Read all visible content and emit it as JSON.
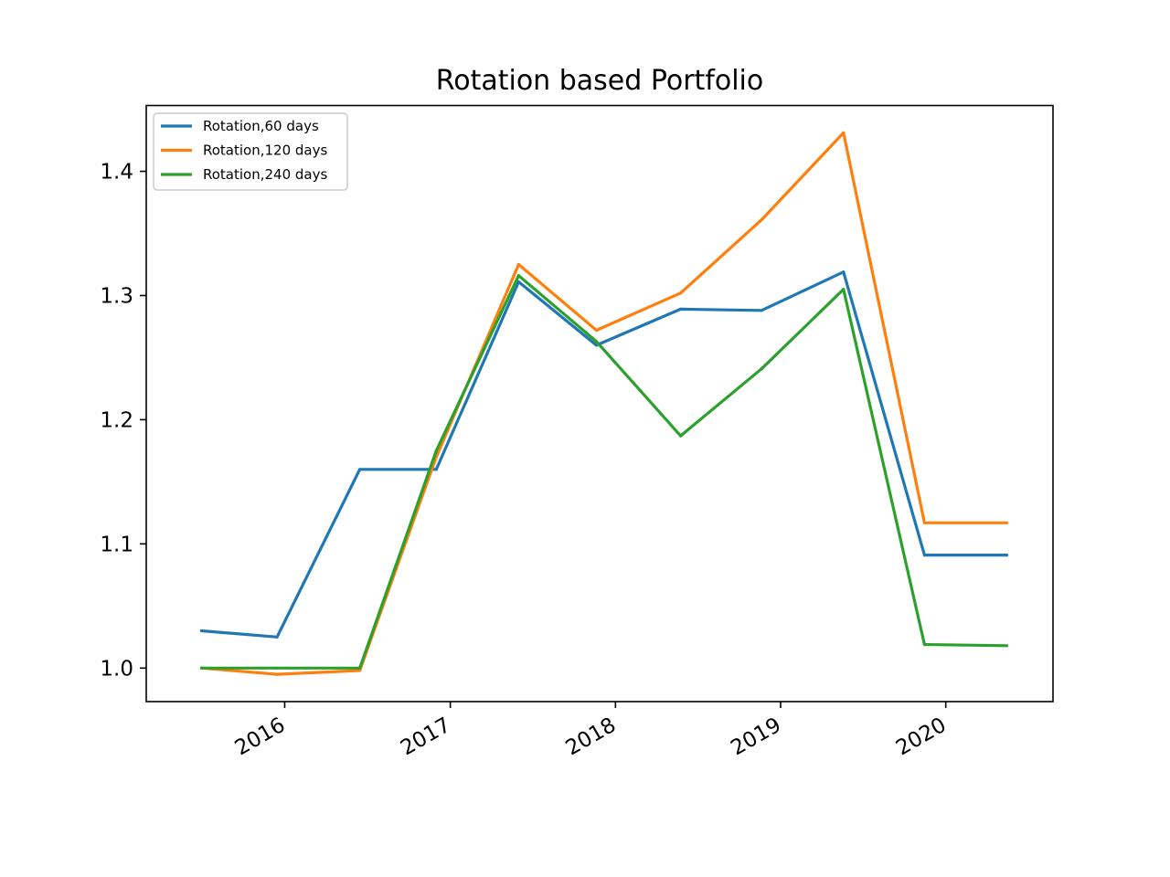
{
  "chart_data": {
    "type": "line",
    "title": "Rotation based Portfolio",
    "xlabel": "",
    "ylabel": "",
    "x": [
      "2015-07-01",
      "2015-12-15",
      "2016-06-15",
      "2016-12-01",
      "2017-06-01",
      "2017-11-20",
      "2018-05-25",
      "2018-11-20",
      "2019-05-20",
      "2019-11-15",
      "2020-05-15"
    ],
    "xlim": [
      "2015-03-01",
      "2020-08-25"
    ],
    "x_ticks": [
      "2016-01-01",
      "2017-01-01",
      "2018-01-01",
      "2019-01-01",
      "2020-01-01"
    ],
    "x_tick_labels": [
      "2016",
      "2017",
      "2018",
      "2019",
      "2020"
    ],
    "ylim": [
      0.973,
      1.453
    ],
    "y_ticks": [
      1.0,
      1.1,
      1.2,
      1.3,
      1.4
    ],
    "y_tick_labels": [
      "1.0",
      "1.1",
      "1.2",
      "1.3",
      "1.4"
    ],
    "grid": false,
    "legend_position": "top-left",
    "series": [
      {
        "name": "Rotation,60 days",
        "color": "#1f77b4",
        "values": [
          1.03,
          1.025,
          1.16,
          1.16,
          1.311,
          1.26,
          1.289,
          1.288,
          1.319,
          1.091,
          1.091
        ]
      },
      {
        "name": "Rotation,120 days",
        "color": "#ff7f0e",
        "values": [
          1.0,
          0.995,
          0.998,
          1.17,
          1.325,
          1.272,
          1.302,
          1.361,
          1.431,
          1.117,
          1.117
        ]
      },
      {
        "name": "Rotation,240 days",
        "color": "#2ca02c",
        "values": [
          1.0,
          1.0,
          1.0,
          1.175,
          1.316,
          1.263,
          1.187,
          1.241,
          1.305,
          1.019,
          1.018
        ]
      }
    ]
  }
}
